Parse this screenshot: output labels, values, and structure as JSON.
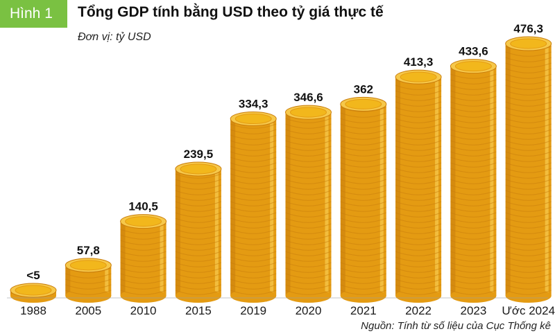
{
  "figure_label": "Hình 1",
  "title": "Tổng GDP tính bằng USD theo tỷ giá thực tế",
  "unit": "Đơn vị: tỷ USD",
  "source": "Nguồn: Tính từ số liệu của Cục Thống kê",
  "colors": {
    "badge": "#7ac142",
    "coin_face": "#f2b71c",
    "coin_edge": "#e49b12",
    "coin_dark": "#c97d0c",
    "coin_light": "#fbd45a",
    "coin_rim": "#f6c84a"
  },
  "chart_data": {
    "type": "bar",
    "style": "stacked-coins",
    "categories": [
      "1988",
      "2005",
      "2010",
      "2015",
      "2019",
      "2020",
      "2021",
      "2022",
      "2023",
      "Ước 2024"
    ],
    "values": [
      5,
      57.8,
      140.5,
      239.5,
      334.3,
      346.6,
      362,
      413.3,
      433.6,
      476.3
    ],
    "value_labels": [
      "<5",
      "57,8",
      "140,5",
      "239,5",
      "334,3",
      "346,6",
      "362",
      "413,3",
      "433,6",
      "476,3"
    ],
    "ylabel": "",
    "xlabel": "",
    "ylim": [
      0,
      476.3
    ],
    "grid": false,
    "legend": "none"
  }
}
